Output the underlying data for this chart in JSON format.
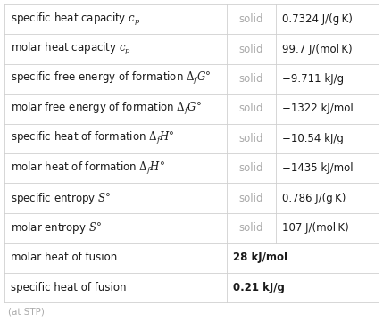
{
  "rows": [
    {
      "col1": "specific heat capacity $c_p$",
      "col2": "solid",
      "col3": "0.7324 J/(g K)",
      "has_col2": true
    },
    {
      "col1": "molar heat capacity $c_p$",
      "col2": "solid",
      "col3": "99.7 J/(mol K)",
      "has_col2": true
    },
    {
      "col1": "specific free energy of formation $\\Delta_f G°$",
      "col2": "solid",
      "col3": "−9.711 kJ/g",
      "has_col2": true
    },
    {
      "col1": "molar free energy of formation $\\Delta_f G°$",
      "col2": "solid",
      "col3": "−1322 kJ/mol",
      "has_col2": true
    },
    {
      "col1": "specific heat of formation $\\Delta_f H°$",
      "col2": "solid",
      "col3": "−10.54 kJ/g",
      "has_col2": true
    },
    {
      "col1": "molar heat of formation $\\Delta_f H°$",
      "col2": "solid",
      "col3": "−1435 kJ/mol",
      "has_col2": true
    },
    {
      "col1": "specific entropy $S°$",
      "col2": "solid",
      "col3": "0.786 J/(g K)",
      "has_col2": true
    },
    {
      "col1": "molar entropy $S°$",
      "col2": "solid",
      "col3": "107 J/(mol K)",
      "has_col2": true
    },
    {
      "col1": "molar heat of fusion",
      "col2": "",
      "col3": "28 kJ/mol",
      "has_col2": false
    },
    {
      "col1": "specific heat of fusion",
      "col2": "",
      "col3": "0.21 kJ/g",
      "has_col2": false
    }
  ],
  "footer": "(at STP)",
  "bg_color": "#ffffff",
  "border_color": "#d0d0d0",
  "text_color_dark": "#1a1a1a",
  "text_color_gray": "#aaaaaa",
  "font_size_main": 8.5,
  "font_size_footer": 7.5,
  "fig_width": 4.29,
  "fig_height": 3.61,
  "dpi": 100
}
